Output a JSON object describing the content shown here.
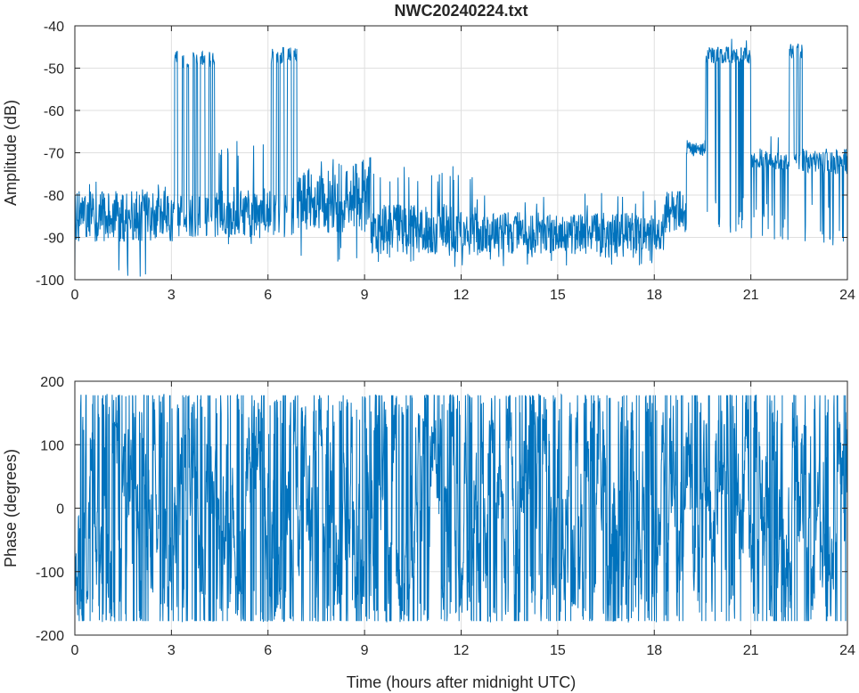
{
  "chart_data": [
    {
      "type": "line",
      "title": "NWC20240224.txt",
      "xlabel": "",
      "ylabel": "Amplitude (dB)",
      "xlim": [
        0,
        24
      ],
      "ylim": [
        -100,
        -40
      ],
      "xticks": [
        "0",
        "3",
        "6",
        "9",
        "12",
        "15",
        "18",
        "21",
        "24"
      ],
      "yticks": [
        "-100",
        "-90",
        "-80",
        "-70",
        "-60",
        "-50",
        "-40"
      ],
      "grid": true,
      "series_color": "#0072BD",
      "segments": [
        {
          "x0": 0.0,
          "x1": 3.1,
          "base": -85,
          "amp": 6,
          "spike_min": -100,
          "spike_max": -76
        },
        {
          "x0": 3.1,
          "x1": 4.4,
          "base": -85,
          "amp": 5,
          "high": -47,
          "toggle": true
        },
        {
          "x0": 4.4,
          "x1": 6.1,
          "base": -84,
          "amp": 6,
          "spike_min": -92,
          "spike_max": -67
        },
        {
          "x0": 6.1,
          "x1": 6.9,
          "base": -85,
          "amp": 5,
          "high": -46,
          "toggle": true
        },
        {
          "x0": 6.9,
          "x1": 8.0,
          "base": -82,
          "amp": 7,
          "spike_min": -95,
          "spike_max": -72
        },
        {
          "x0": 8.0,
          "x1": 9.2,
          "base": -80,
          "amp": 9,
          "spike_min": -96,
          "spike_max": -69
        },
        {
          "x0": 9.2,
          "x1": 12.5,
          "base": -88,
          "amp": 6,
          "spike_min": -97,
          "spike_max": -73
        },
        {
          "x0": 12.5,
          "x1": 18.3,
          "base": -89,
          "amp": 5,
          "spike_min": -97,
          "spike_max": -79
        },
        {
          "x0": 18.3,
          "x1": 19.0,
          "base": -84,
          "amp": 5,
          "spike_min": -90,
          "spike_max": -78
        },
        {
          "x0": 19.0,
          "x1": 19.6,
          "base": -69,
          "amp": 2,
          "spike_min": -71,
          "spike_max": -65
        },
        {
          "x0": 19.6,
          "x1": 21.0,
          "base": -47,
          "amp": 2,
          "spike_min": -90,
          "spike_max": -43,
          "dropouts": true
        },
        {
          "x0": 21.0,
          "x1": 22.2,
          "base": -72,
          "amp": 2,
          "spike_min": -92,
          "spike_max": -66,
          "dropouts": true
        },
        {
          "x0": 22.2,
          "x1": 22.6,
          "base": -72,
          "amp": 2,
          "high": -45,
          "toggle": true
        },
        {
          "x0": 22.6,
          "x1": 24.0,
          "base": -72,
          "amp": 3,
          "spike_min": -92,
          "spike_max": -67,
          "dropouts": true
        }
      ]
    },
    {
      "type": "line",
      "title": "",
      "xlabel": "Time (hours after midnight UTC)",
      "ylabel": "Phase (degrees)",
      "xlim": [
        0,
        24
      ],
      "ylim": [
        -200,
        200
      ],
      "xticks": [
        "0",
        "3",
        "6",
        "9",
        "12",
        "15",
        "18",
        "21",
        "24"
      ],
      "yticks": [
        "-200",
        "-100",
        "0",
        "100",
        "200"
      ],
      "grid": true,
      "series_color": "#0072BD",
      "wrap": [
        -180,
        180
      ],
      "description_values": {
        "min": -180,
        "max": 180
      }
    }
  ]
}
